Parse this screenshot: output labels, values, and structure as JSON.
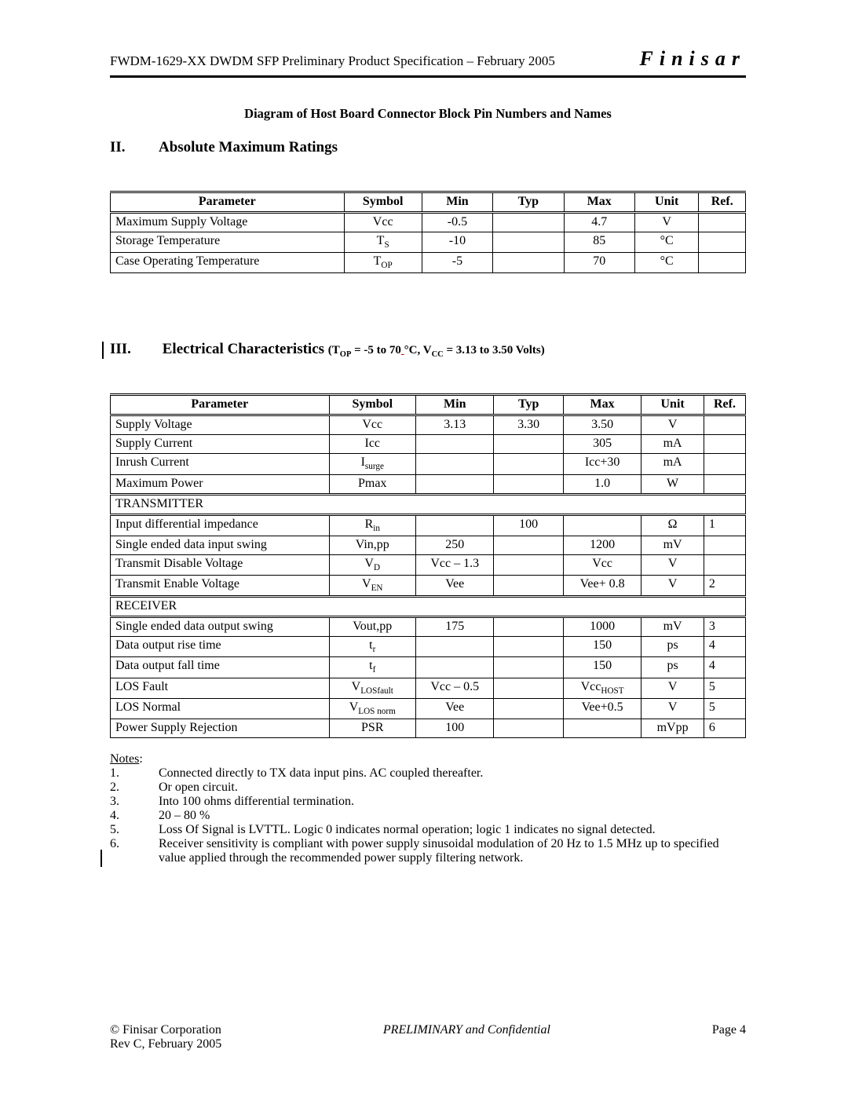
{
  "header": {
    "doc_title": "FWDM-1629-XX DWDM SFP Preliminary Product Specification – February 2005",
    "brand": "Finisar"
  },
  "diagram_caption": "Diagram of Host Board Connector Block Pin Numbers and Names",
  "section2": {
    "number": "II.",
    "title": "Absolute Maximum Ratings"
  },
  "section3": {
    "number": "III.",
    "title": "Electrical Characteristics",
    "cond_prefix": " (T",
    "cond_top_sub": "OP",
    "cond_mid1": " = -5 to 70",
    "cond_red": " ",
    "cond_mid2": "°C, V",
    "cond_vcc_sub": "CC",
    "cond_tail": " = 3.13 to 3.50 Volts)"
  },
  "table_headers": {
    "parameter": "Parameter",
    "symbol": "Symbol",
    "min": "Min",
    "typ": "Typ",
    "max": "Max",
    "unit": "Unit",
    "ref": "Ref."
  },
  "table1": {
    "rows": [
      {
        "param": "Maximum Supply Voltage",
        "symbol": "Vcc",
        "min": "-0.5",
        "typ": "",
        "max": "4.7",
        "unit": "V",
        "ref": ""
      },
      {
        "param": "Storage Temperature",
        "symbol_html": "T<sub>S</sub>",
        "min": "-10",
        "typ": "",
        "max": "85",
        "unit": "°C",
        "ref": ""
      },
      {
        "param": "Case Operating Temperature",
        "symbol_html": "T<sub>OP</sub>",
        "min": "-5",
        "typ": "",
        "max": "70",
        "unit": "°C",
        "ref": ""
      }
    ]
  },
  "table2": {
    "rows": [
      {
        "param": "Supply Voltage",
        "symbol": "Vcc",
        "min": "3.13",
        "typ": "3.30",
        "max": "3.50",
        "unit": "V",
        "ref": ""
      },
      {
        "param": "Supply Current",
        "symbol": "Icc",
        "min": "",
        "typ": "",
        "max": "305",
        "unit": "mA",
        "ref": ""
      },
      {
        "param": "Inrush Current",
        "symbol_html": "I<sub>surge</sub>",
        "min": "",
        "typ": "",
        "max": "Icc+30",
        "unit": "mA",
        "ref": ""
      },
      {
        "param": "Maximum Power",
        "symbol": "Pmax",
        "min": "",
        "typ": "",
        "max": "1.0",
        "unit": "W",
        "ref": ""
      },
      {
        "section": "TRANSMITTER"
      },
      {
        "param": "Input differential impedance",
        "symbol_html": "R<sub>in</sub>",
        "min": "",
        "typ": "100",
        "max": "",
        "unit": "Ω",
        "ref": "1"
      },
      {
        "param": "Single ended data input swing",
        "symbol": "Vin,pp",
        "min": "250",
        "typ": "",
        "max": "1200",
        "unit": "mV",
        "ref": ""
      },
      {
        "param": "Transmit Disable Voltage",
        "symbol_html": "V<sub>D</sub>",
        "min": "Vcc – 1.3",
        "typ": "",
        "max": "Vcc",
        "unit": "V",
        "ref": ""
      },
      {
        "param": "Transmit Enable Voltage",
        "symbol_html": "V<sub>EN</sub>",
        "min": "Vee",
        "typ": "",
        "max": "Vee+ 0.8",
        "unit": "V",
        "ref": "2"
      },
      {
        "section": "RECEIVER"
      },
      {
        "param": "Single ended data output swing",
        "symbol": "Vout,pp",
        "min": "175",
        "typ": "",
        "max": "1000",
        "unit": "mV",
        "ref": "3"
      },
      {
        "param": "Data output rise time",
        "symbol_html": "t<sub>r</sub>",
        "min": "",
        "typ": "",
        "max": "150",
        "unit": "ps",
        "ref": "4"
      },
      {
        "param": "Data output fall time",
        "symbol_html": "t<sub>f</sub>",
        "min": "",
        "typ": "",
        "max": "150",
        "unit": "ps",
        "ref": "4"
      },
      {
        "param": "LOS Fault",
        "symbol_html": "V<sub>LOSfault</sub>",
        "min": "Vcc – 0.5",
        "typ": "",
        "max_html": "Vcc<sub>HOST</sub>",
        "unit": "V",
        "ref": "5"
      },
      {
        "param": "LOS Normal",
        "symbol_html": "V<sub>LOS norm</sub>",
        "min": "Vee",
        "typ": "",
        "max": "Vee+0.5",
        "unit": "V",
        "ref": "5"
      },
      {
        "param": "Power Supply Rejection",
        "symbol": "PSR",
        "min": "100",
        "typ": "",
        "max": "",
        "unit": "mVpp",
        "ref": "6"
      }
    ]
  },
  "notes": {
    "title": "Notes",
    "items": [
      {
        "n": "1.",
        "t": "Connected directly to TX data input pins.  AC coupled thereafter."
      },
      {
        "n": "2.",
        "t": "Or open circuit."
      },
      {
        "n": "3.",
        "t": "Into 100 ohms differential termination."
      },
      {
        "n": "4.",
        "t": "20 – 80 %"
      },
      {
        "n": "5.",
        "t": "Loss Of Signal is LVTTL. Logic 0 indicates normal operation; logic 1 indicates no signal detected."
      },
      {
        "n": "6.",
        "t": "Receiver sensitivity is compliant with power supply sinusoidal modulation of 20 Hz to 1.5 MHz up to specified value applied through the recommended power supply filtering network."
      }
    ]
  },
  "footer": {
    "left": "© Finisar Corporation",
    "center": "PRELIMINARY and Confidential",
    "right": "Page 4",
    "rev": "Rev C, February 2005"
  }
}
